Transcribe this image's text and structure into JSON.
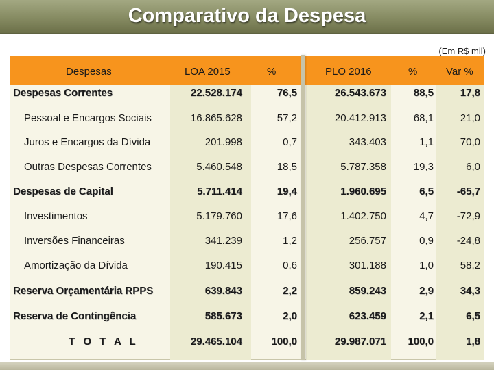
{
  "title": "Comparativo da Despesa",
  "unit_note": "(Em R$ mil)",
  "colors": {
    "header": "#f7941d",
    "title_bar": "#868b62"
  },
  "table": {
    "headers": [
      "Despesas",
      "LOA 2015",
      "%",
      "PLO 2016",
      "%",
      "Var %"
    ],
    "rows": [
      {
        "label": "Despesas Correntes",
        "loa": "22.528.174",
        "pct1": "76,5",
        "plo": "26.543.673",
        "pct2": "88,5",
        "var": "17,8"
      },
      {
        "label": "Pessoal e Encargos Sociais",
        "loa": "16.865.628",
        "pct1": "57,2",
        "plo": "20.412.913",
        "pct2": "68,1",
        "var": "21,0"
      },
      {
        "label": "Juros e Encargos da Dívida",
        "loa": "201.998",
        "pct1": "0,7",
        "plo": "343.403",
        "pct2": "1,1",
        "var": "70,0"
      },
      {
        "label": "Outras Despesas Correntes",
        "loa": "5.460.548",
        "pct1": "18,5",
        "plo": "5.787.358",
        "pct2": "19,3",
        "var": "6,0"
      },
      {
        "label": "Despesas de Capital",
        "loa": "5.711.414",
        "pct1": "19,4",
        "plo": "1.960.695",
        "pct2": "6,5",
        "var": "-65,7"
      },
      {
        "label": "Investimentos",
        "loa": "5.179.760",
        "pct1": "17,6",
        "plo": "1.402.750",
        "pct2": "4,7",
        "var": "-72,9"
      },
      {
        "label": "Inversões Financeiras",
        "loa": "341.239",
        "pct1": "1,2",
        "plo": "256.757",
        "pct2": "0,9",
        "var": "-24,8"
      },
      {
        "label": "Amortização da Dívida",
        "loa": "190.415",
        "pct1": "0,6",
        "plo": "301.188",
        "pct2": "1,0",
        "var": "58,2"
      },
      {
        "label": "Reserva Orçamentária RPPS",
        "loa": "639.843",
        "pct1": "2,2",
        "plo": "859.243",
        "pct2": "2,9",
        "var": "34,3"
      },
      {
        "label": "Reserva de Contingência",
        "loa": "585.673",
        "pct1": "2,0",
        "plo": "623.459",
        "pct2": "2,1",
        "var": "6,5"
      },
      {
        "label": "T O T A L",
        "loa": "29.465.104",
        "pct1": "100,0",
        "plo": "29.987.071",
        "pct2": "100,0",
        "var": "1,8"
      }
    ]
  }
}
